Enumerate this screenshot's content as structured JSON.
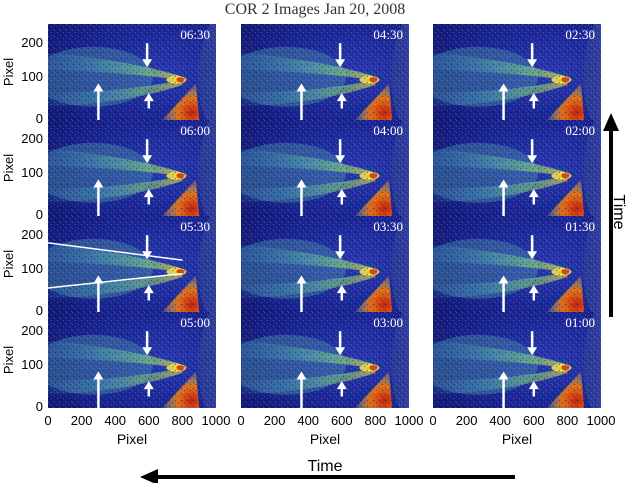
{
  "figure": {
    "title": "COR 2 Images Jan 20, 2008",
    "y_axis_label": "Pixel",
    "x_axis_label": "Pixel",
    "time_label_horizontal": "Time",
    "time_label_vertical": "Time",
    "y_ticks": [
      "0",
      "100",
      "200"
    ],
    "x_ticks": [
      "0",
      "200",
      "400",
      "600",
      "800",
      "1000"
    ]
  },
  "panels": [
    [
      "06:30",
      "04:30",
      "02:30"
    ],
    [
      "06:00",
      "04:00",
      "02:00"
    ],
    [
      "05:30",
      "03:30",
      "01:30"
    ],
    [
      "05:00",
      "03:00",
      "01:00"
    ]
  ],
  "colors": {
    "background": "#1a1e8c",
    "streamer": "#5cc8a0",
    "core": "#f0e040",
    "hot": "#e04010",
    "arrow": "#ffffff",
    "timeline": "#000000"
  },
  "icons": [
    "up-arrow-icon",
    "down-arrow-icon",
    "left-arrow-icon"
  ]
}
